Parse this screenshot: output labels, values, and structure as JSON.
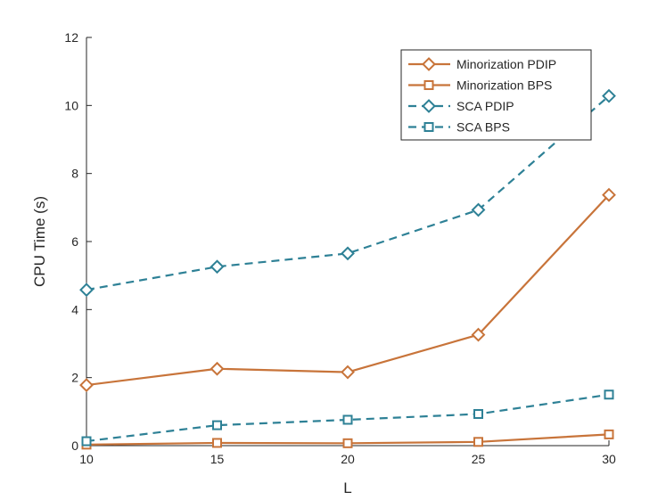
{
  "chart_data": {
    "type": "line",
    "title": "",
    "xlabel": "L",
    "ylabel": "CPU Time (s)",
    "x": [
      10,
      15,
      20,
      25,
      30
    ],
    "xlim": [
      10,
      30
    ],
    "ylim": [
      0,
      12
    ],
    "xticks": [
      10,
      15,
      20,
      25,
      30
    ],
    "yticks": [
      0,
      2,
      4,
      6,
      8,
      10,
      12
    ],
    "grid": false,
    "legend_position": "top-right",
    "series": [
      {
        "name": "Minorization PDIP",
        "values": [
          1.78,
          2.26,
          2.16,
          3.26,
          7.37
        ],
        "color": "#C8743A",
        "marker": "diamond",
        "line_style": "solid"
      },
      {
        "name": "Minorization BPS",
        "values": [
          0.03,
          0.08,
          0.07,
          0.11,
          0.33
        ],
        "color": "#C8743A",
        "marker": "square",
        "line_style": "solid"
      },
      {
        "name": "SCA PDIP",
        "values": [
          4.58,
          5.26,
          5.65,
          6.93,
          10.28
        ],
        "color": "#2E8196",
        "marker": "diamond",
        "line_style": "dashed"
      },
      {
        "name": "SCA BPS",
        "values": [
          0.13,
          0.6,
          0.76,
          0.93,
          1.5
        ],
        "color": "#2E8196",
        "marker": "square",
        "line_style": "dashed"
      }
    ]
  }
}
